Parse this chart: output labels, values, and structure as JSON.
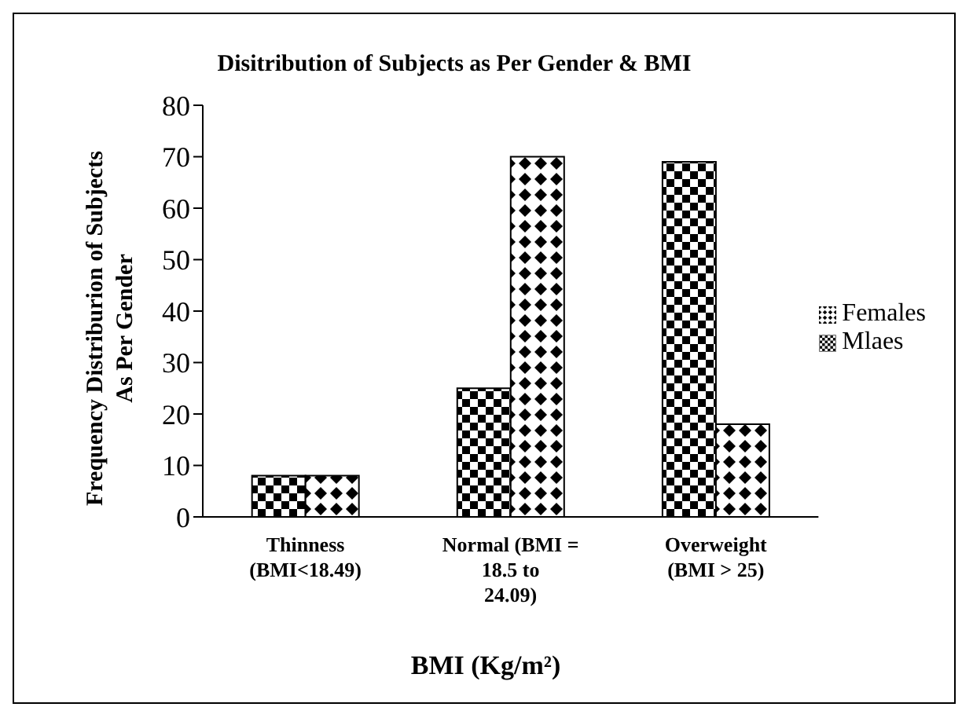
{
  "chart_data": {
    "type": "bar",
    "title": "Disitribution of Subjects as Per Gender  & BMI",
    "xlabel": "BMI (Kg/m²)",
    "ylabel": "Frequency Distriburion of Subjects As Per Gender",
    "categories": [
      "Thinness (BMI<18.49)",
      "Normal (BMI = 18.5 to 24.09)",
      "Overweight (BMI > 25)"
    ],
    "series": [
      {
        "name": "Mlaes",
        "color": "#000000",
        "values": [
          8,
          25,
          69
        ]
      },
      {
        "name": "Females",
        "color": "#000000",
        "values": [
          8,
          70,
          18
        ]
      }
    ],
    "ylim": [
      0,
      80
    ],
    "yticks": [
      0,
      10,
      20,
      30,
      40,
      50,
      60,
      70,
      80
    ],
    "grid": false,
    "legend": "right"
  }
}
